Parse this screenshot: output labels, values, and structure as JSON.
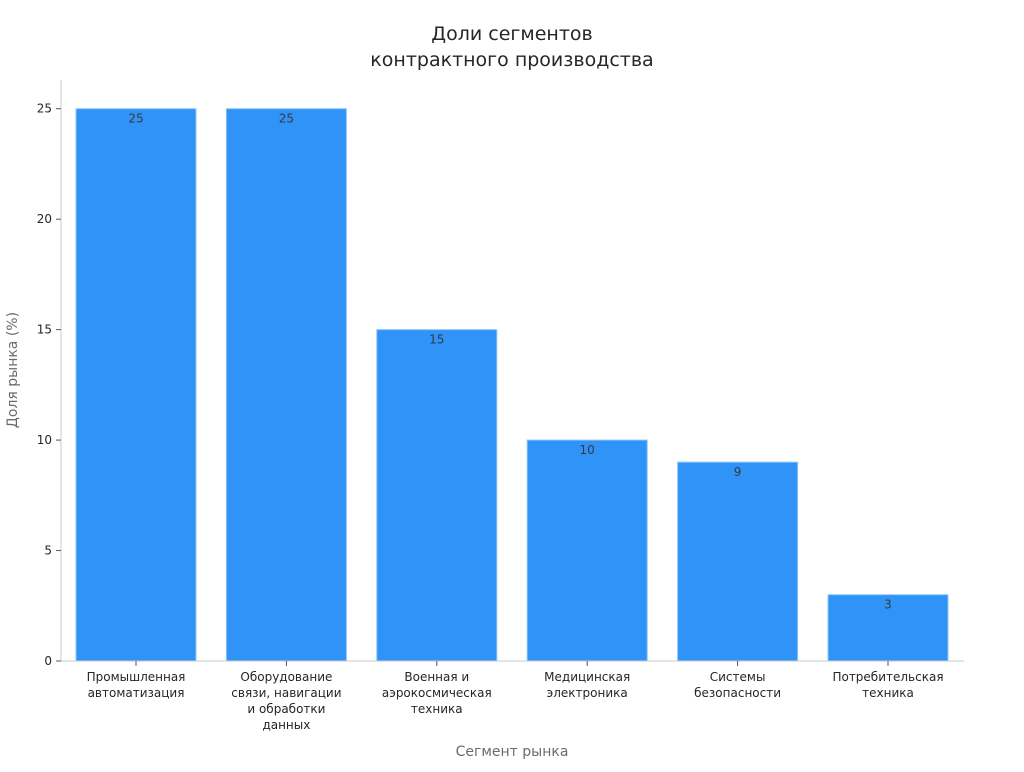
{
  "chart_data": {
    "type": "bar",
    "title": "Доли сегментов контрактного производства",
    "title_lines": [
      "Доли сегментов",
      "контрактного производства"
    ],
    "xlabel": "Сегмент рынка",
    "ylabel": "Доля рынка (%)",
    "categories": [
      "Промышленная автоматизация",
      "Оборудование связи, навигации и обработки данных",
      "Военная и аэрокосмическая техника",
      "Медицинская электроника",
      "Системы безопасности",
      "Потребительская техника"
    ],
    "category_lines": [
      [
        "Промышленная",
        "автоматизация"
      ],
      [
        "Оборудование",
        "связи, навигации",
        "и обработки",
        "данных"
      ],
      [
        "Военная и",
        "аэрокосмическая",
        "техника"
      ],
      [
        "Медицинская",
        "электроника"
      ],
      [
        "Системы",
        "безопасности"
      ],
      [
        "Потребительская",
        "техника"
      ]
    ],
    "values": [
      25,
      25,
      15,
      10,
      9,
      3
    ],
    "data_labels": [
      "25",
      "25",
      "15",
      "10",
      "9",
      "3"
    ],
    "ylim": [
      0,
      26.3
    ],
    "yticks": [
      0,
      5,
      10,
      15,
      20,
      25
    ],
    "ytick_labels": [
      "0",
      "5",
      "10",
      "15",
      "20",
      "25"
    ],
    "grid": false,
    "legend": "none",
    "bar_color": "#2f93f8",
    "axis_color": "#c8c8c8"
  }
}
